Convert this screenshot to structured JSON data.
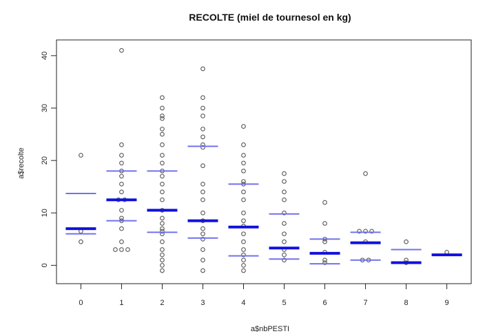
{
  "chart_data": {
    "type": "scatter",
    "title": "RECOLTE (miel de tournesol en kg)",
    "xlabel": "a$nbPESTI",
    "ylabel": "a$recolte",
    "xlim": [
      -0.6,
      9.6
    ],
    "ylim": [
      -3.5,
      43
    ],
    "x_ticks": [
      "0",
      "1",
      "2",
      "3",
      "4",
      "5",
      "6",
      "7",
      "8",
      "9"
    ],
    "y_ticks": [
      "0",
      "10",
      "20",
      "30",
      "40"
    ],
    "grid": false,
    "legend": "none",
    "colors": {
      "points": "#555555",
      "quartile": "#7070ee",
      "median": "#1010dd"
    },
    "groups": [
      {
        "x": 0,
        "y": [
          21,
          6.5,
          4.5
        ],
        "q1": 6,
        "median": 7,
        "q3": 13.7
      },
      {
        "x": 1,
        "y": [
          41,
          23,
          21,
          19.5,
          18,
          17,
          15.5,
          14,
          12.5,
          12.5,
          10.5,
          9,
          8.5,
          7,
          4.5,
          3,
          3,
          3
        ],
        "q1": 8.5,
        "median": 12.5,
        "q3": 18
      },
      {
        "x": 2,
        "y": [
          32,
          30,
          28.5,
          28,
          26,
          25,
          23,
          21,
          19.5,
          18,
          17,
          15.5,
          14,
          12.5,
          10.5,
          9,
          8,
          7,
          6.5,
          6,
          4.5,
          3,
          2,
          1,
          0,
          -1
        ],
        "q1": 6.3,
        "median": 10.5,
        "q3": 18
      },
      {
        "x": 3,
        "y": [
          37.5,
          32,
          30,
          28.5,
          26,
          24.5,
          23,
          22.5,
          19,
          15.5,
          14,
          12.5,
          10,
          8.5,
          7,
          6,
          5,
          3,
          1,
          -1
        ],
        "q1": 5.2,
        "median": 8.5,
        "q3": 22.7
      },
      {
        "x": 4,
        "y": [
          26.5,
          23,
          21,
          19.5,
          18,
          16,
          15.5,
          14,
          12.5,
          10,
          8.5,
          7.5,
          6,
          4.5,
          3,
          2,
          1,
          0,
          -1
        ],
        "q1": 1.8,
        "median": 7.3,
        "q3": 15.5
      },
      {
        "x": 5,
        "y": [
          17.5,
          16,
          14,
          12.5,
          10,
          8,
          6,
          4.5,
          3,
          2,
          1
        ],
        "q1": 1.2,
        "median": 3.3,
        "q3": 9.8
      },
      {
        "x": 6,
        "y": [
          12,
          8,
          5,
          4.5,
          2.5,
          1,
          0.5
        ],
        "q1": 0.3,
        "median": 2.3,
        "q3": 5
      },
      {
        "x": 7,
        "y": [
          17.5,
          6.5,
          6.5,
          6.5,
          4.5,
          1,
          1
        ],
        "q1": 1,
        "median": 4.3,
        "q3": 6.3
      },
      {
        "x": 8,
        "y": [
          4.5,
          1,
          0.5
        ],
        "q1": 0.5,
        "median": 0.5,
        "q3": 3
      },
      {
        "x": 9,
        "y": [
          2.5
        ],
        "q1": 2,
        "median": 2,
        "q3": 2
      }
    ]
  }
}
